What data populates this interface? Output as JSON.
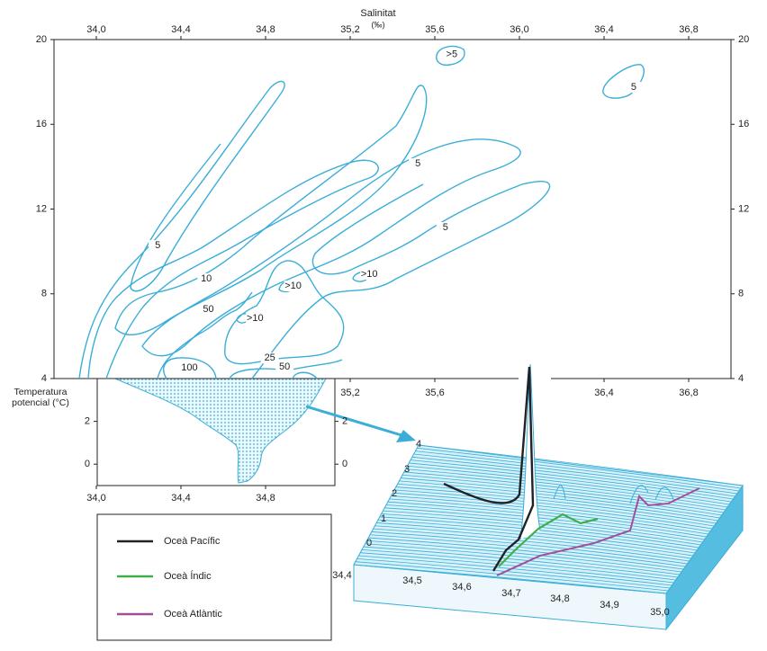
{
  "chart_data": {
    "type": "contour",
    "xlabel": "Salinitat",
    "xlabel_unit": "(‰)",
    "ylabel": "Temperatura potencial (°C)",
    "xlim": [
      33.8,
      37.0
    ],
    "ylim": [
      4,
      20
    ],
    "xticks": [
      {
        "value": 34.0,
        "label": "34,0"
      },
      {
        "value": 34.4,
        "label": "34,4"
      },
      {
        "value": 34.8,
        "label": "34,8"
      },
      {
        "value": 35.2,
        "label": "35,2"
      },
      {
        "value": 35.6,
        "label": "35,6"
      },
      {
        "value": 36.0,
        "label": "36,0"
      },
      {
        "value": 36.4,
        "label": "36,4"
      },
      {
        "value": 36.8,
        "label": "36,8"
      }
    ],
    "xticks_bottom": [
      {
        "value": 35.2,
        "label": "35,2"
      },
      {
        "value": 35.6,
        "label": "35,6"
      },
      {
        "value": 36.4,
        "label": "36,4"
      },
      {
        "value": 36.8,
        "label": "36,8"
      }
    ],
    "yticks": [
      4,
      8,
      12,
      16,
      20
    ],
    "contour_color": "#3aaed8",
    "contour_labels": [
      {
        "label": ">5",
        "x": 35.68,
        "y": 19.3
      },
      {
        "label": "5",
        "x": 36.54,
        "y": 17.75
      },
      {
        "label": "5",
        "x": 35.52,
        "y": 14.14
      },
      {
        "label": "5",
        "x": 35.65,
        "y": 11.13
      },
      {
        "label": "5",
        "x": 34.29,
        "y": 10.28
      },
      {
        "label": "10",
        "x": 34.52,
        "y": 8.71
      },
      {
        "label": "50",
        "x": 34.53,
        "y": 7.27
      },
      {
        "label": ">10",
        "x": 34.93,
        "y": 8.37
      },
      {
        "label": ">10",
        "x": 35.29,
        "y": 8.92
      },
      {
        "label": ">10",
        "x": 34.75,
        "y": 6.84
      },
      {
        "label": "25",
        "x": 34.82,
        "y": 4.97
      },
      {
        "label": "50",
        "x": 34.89,
        "y": 4.55
      },
      {
        "label": "100",
        "x": 34.44,
        "y": 4.51
      }
    ],
    "inset": {
      "ylim": [
        -1,
        4
      ],
      "xticks": [
        {
          "value": 34.0,
          "label": "34,0"
        },
        {
          "value": 34.4,
          "label": "34,4"
        },
        {
          "value": 34.8,
          "label": "34,8"
        }
      ],
      "yticks": [
        0,
        2
      ]
    },
    "surface": {
      "xticks": [
        {
          "value": 34.4,
          "label": "34,4"
        },
        {
          "value": 34.5,
          "label": "34,5"
        },
        {
          "value": 34.6,
          "label": "34,6"
        },
        {
          "value": 34.7,
          "label": "34,7"
        },
        {
          "value": 34.8,
          "label": "34,8"
        },
        {
          "value": 34.9,
          "label": "34,9"
        },
        {
          "value": 35.0,
          "label": "35,0"
        }
      ],
      "zticks": [
        0,
        1,
        2,
        3,
        4
      ]
    },
    "series": [
      {
        "name": "Oceà Pacífic",
        "color": "#1f2226"
      },
      {
        "name": "Oceà Índic",
        "color": "#3db04a"
      },
      {
        "name": "Oceà Atlàntic",
        "color": "#a0509a"
      }
    ]
  }
}
